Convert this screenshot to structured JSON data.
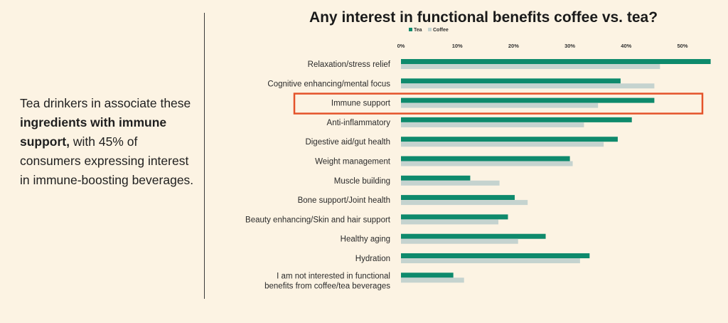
{
  "caption": {
    "part1": "Tea drinkers in associate these ",
    "bold": "ingredients with immune support,",
    "part2": " with 45% of consumers expressing interest in immune-boosting beverages."
  },
  "colors": {
    "tea": "#0e8a6c",
    "coffee": "#c5d3cf",
    "highlight": "#e4532a"
  },
  "chart_data": {
    "type": "bar",
    "orientation": "horizontal",
    "title": "Any interest in functional benefits coffee vs. tea?",
    "xlim": [
      0,
      55
    ],
    "ticks": [
      {
        "value": 0,
        "label": "0%"
      },
      {
        "value": 10,
        "label": "10%"
      },
      {
        "value": 20,
        "label": "20%"
      },
      {
        "value": 30,
        "label": "30%"
      },
      {
        "value": 40,
        "label": "40%"
      },
      {
        "value": 50,
        "label": "50%"
      }
    ],
    "categories": [
      [
        "Relaxation/stress relief"
      ],
      [
        "Cognitive enhancing/mental focus"
      ],
      [
        "Immune support"
      ],
      [
        "Anti-inflammatory"
      ],
      [
        "Digestive aid/gut health"
      ],
      [
        "Weight management"
      ],
      [
        "Muscle building"
      ],
      [
        "Bone support/Joint health"
      ],
      [
        "Beauty enhancing/Skin and hair support"
      ],
      [
        "Healthy aging"
      ],
      [
        "Hydration"
      ],
      [
        "I am not interested in functional",
        "benefits from coffee/tea beverages"
      ]
    ],
    "series": [
      {
        "name": "Tea",
        "values": [
          55,
          39,
          45,
          41,
          38.5,
          30,
          12.3,
          20.2,
          19,
          25.7,
          33.5,
          9.3
        ]
      },
      {
        "name": "Coffee",
        "values": [
          46,
          45,
          35,
          32.5,
          36,
          30.5,
          17.5,
          22.5,
          17.3,
          20.8,
          31.8,
          11.2
        ]
      }
    ],
    "highlighted_category": "Immune support"
  }
}
